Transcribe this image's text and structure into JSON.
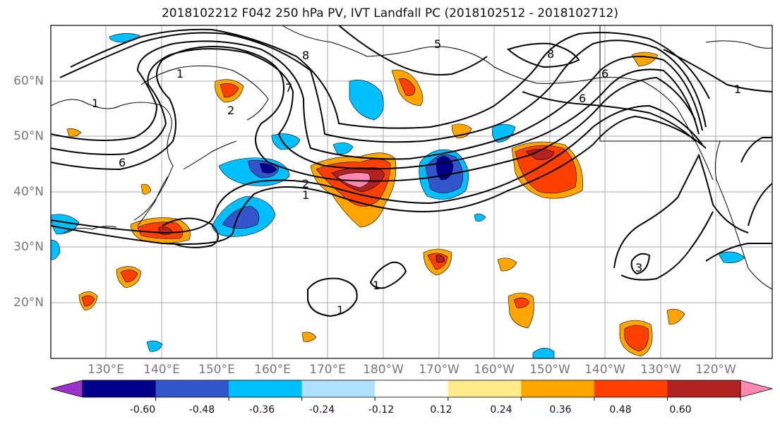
{
  "title": "2018102212 F042 250 hPa PV, IVT Landfall PC (2018102512 - 2018102712)",
  "map": {
    "lat_ticks": [
      "60°N",
      "50°N",
      "40°N",
      "30°N",
      "20°N"
    ],
    "lon_ticks": [
      "130°E",
      "140°E",
      "150°E",
      "160°E",
      "170°E",
      "180°W",
      "170°W",
      "160°W",
      "150°W",
      "140°W",
      "130°W",
      "120°W"
    ],
    "contour_labels": [
      "1",
      "8",
      "6",
      "7",
      "2",
      "5",
      "6",
      "1",
      "1",
      "8",
      "6",
      "1",
      "2",
      "1",
      "1",
      "3"
    ]
  },
  "colorbar": {
    "colors": [
      "#9933cc",
      "#00008b",
      "#3355cc",
      "#00bfff",
      "#b0e2ff",
      "#ffffff",
      "#ffeb8a",
      "#ffa500",
      "#ff4000",
      "#b22222",
      "#ff88b0"
    ],
    "tick_labels": [
      "-0.60",
      "-0.48",
      "-0.36",
      "-0.24",
      "-0.12",
      "0.12",
      "0.24",
      "0.36",
      "0.48",
      "0.60"
    ]
  }
}
